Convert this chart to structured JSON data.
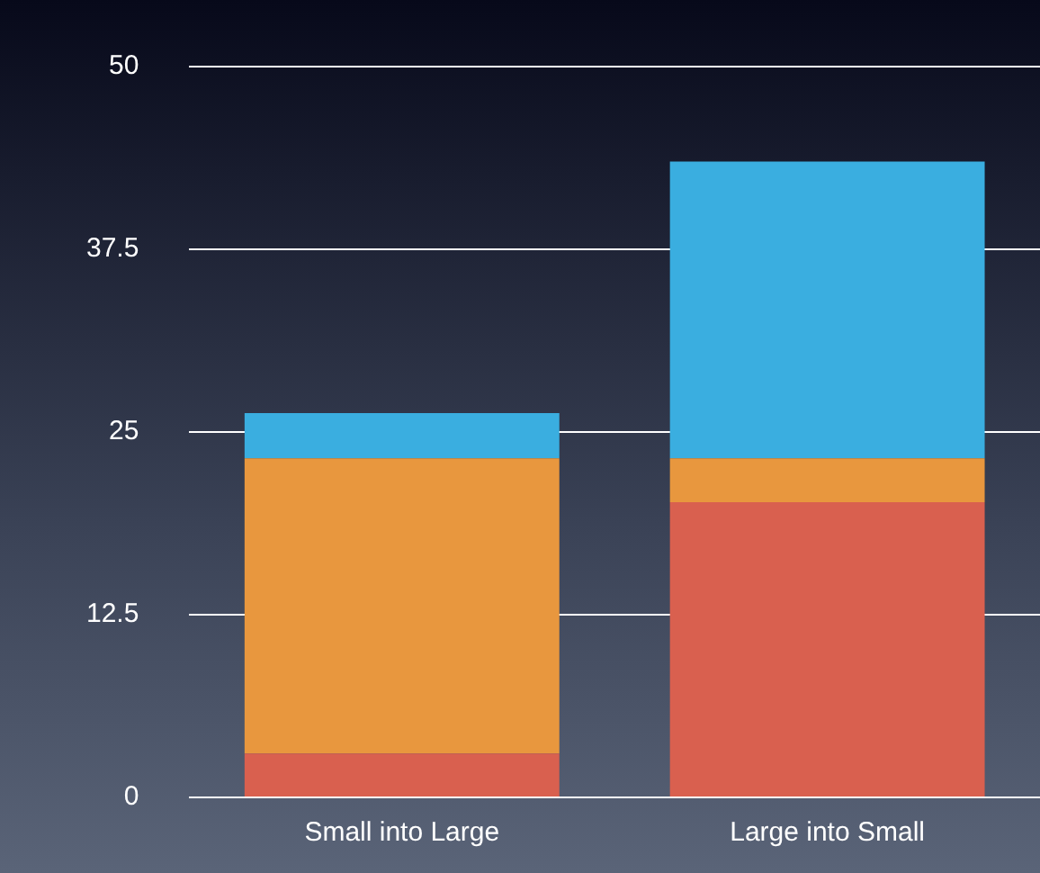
{
  "chart_data": {
    "type": "bar",
    "stacked": true,
    "categories": [
      "Small into Large",
      "Large into Small"
    ],
    "series": [
      {
        "color": "#d9604f",
        "values": [
          3,
          20.2
        ]
      },
      {
        "color": "#e8973e",
        "values": [
          20.2,
          3
        ]
      },
      {
        "color": "#3aaee0",
        "values": [
          3.1,
          20.3
        ]
      }
    ],
    "ylim": [
      0,
      50
    ],
    "yticks": [
      0,
      {
        "value": 12.5,
        "label": "12.5"
      },
      25,
      {
        "value": 37.5,
        "label": "37.5"
      },
      50
    ],
    "grid": "y",
    "legend": false
  }
}
